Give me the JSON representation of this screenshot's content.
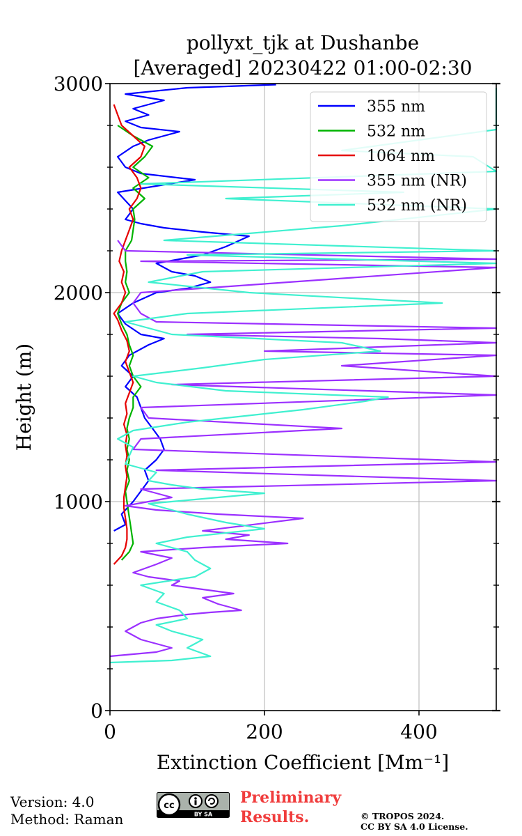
{
  "chart_data": {
    "type": "line",
    "title_line1": "pollyxt_tjk at Dushanbe",
    "title_line2": "[Averaged] 20230422 01:00-02:30",
    "xlabel": "Extinction Coefficient [Mm⁻¹]",
    "ylabel": "Height (m)",
    "xlim": [
      0,
      500
    ],
    "ylim": [
      0,
      3000
    ],
    "x_ticks": [
      0,
      200,
      400
    ],
    "y_ticks": [
      0,
      1000,
      2000,
      3000
    ],
    "x_tick_labels": [
      "0",
      "200",
      "400"
    ],
    "y_tick_labels": [
      "0",
      "1000",
      "2000",
      "3000"
    ],
    "grid": true,
    "legend_position": "top-right",
    "series": [
      {
        "name": "355 nm",
        "color": "#0000ff",
        "points": [
          [
            5,
            860
          ],
          [
            20,
            890
          ],
          [
            15,
            940
          ],
          [
            30,
            1000
          ],
          [
            40,
            1050
          ],
          [
            50,
            1100
          ],
          [
            45,
            1150
          ],
          [
            60,
            1200
          ],
          [
            70,
            1250
          ],
          [
            65,
            1300
          ],
          [
            55,
            1350
          ],
          [
            45,
            1400
          ],
          [
            40,
            1450
          ],
          [
            35,
            1500
          ],
          [
            20,
            1550
          ],
          [
            30,
            1600
          ],
          [
            15,
            1650
          ],
          [
            25,
            1700
          ],
          [
            50,
            1750
          ],
          [
            70,
            1780
          ],
          [
            40,
            1800
          ],
          [
            20,
            1850
          ],
          [
            10,
            1900
          ],
          [
            30,
            1950
          ],
          [
            60,
            2000
          ],
          [
            100,
            2020
          ],
          [
            130,
            2050
          ],
          [
            110,
            2080
          ],
          [
            80,
            2100
          ],
          [
            60,
            2140
          ],
          [
            90,
            2160
          ],
          [
            120,
            2180
          ],
          [
            150,
            2220
          ],
          [
            180,
            2270
          ],
          [
            120,
            2290
          ],
          [
            70,
            2310
          ],
          [
            40,
            2330
          ],
          [
            20,
            2350
          ],
          [
            30,
            2400
          ],
          [
            10,
            2480
          ],
          [
            60,
            2510
          ],
          [
            110,
            2540
          ],
          [
            40,
            2570
          ],
          [
            20,
            2600
          ],
          [
            10,
            2650
          ],
          [
            30,
            2700
          ],
          [
            50,
            2730
          ],
          [
            90,
            2770
          ],
          [
            40,
            2790
          ],
          [
            20,
            2820
          ],
          [
            50,
            2850
          ],
          [
            30,
            2880
          ],
          [
            70,
            2920
          ],
          [
            20,
            2950
          ],
          [
            100,
            2980
          ],
          [
            215,
            2995
          ]
        ]
      },
      {
        "name": "532 nm",
        "color": "#00b400",
        "points": [
          [
            15,
            720
          ],
          [
            25,
            760
          ],
          [
            30,
            800
          ],
          [
            28,
            850
          ],
          [
            26,
            900
          ],
          [
            24,
            950
          ],
          [
            22,
            1000
          ],
          [
            20,
            1050
          ],
          [
            25,
            1100
          ],
          [
            22,
            1150
          ],
          [
            25,
            1200
          ],
          [
            22,
            1250
          ],
          [
            25,
            1300
          ],
          [
            22,
            1350
          ],
          [
            25,
            1400
          ],
          [
            30,
            1450
          ],
          [
            30,
            1500
          ],
          [
            40,
            1550
          ],
          [
            30,
            1600
          ],
          [
            25,
            1650
          ],
          [
            30,
            1700
          ],
          [
            25,
            1750
          ],
          [
            22,
            1800
          ],
          [
            15,
            1850
          ],
          [
            10,
            1900
          ],
          [
            15,
            1950
          ],
          [
            25,
            2000
          ],
          [
            20,
            2050
          ],
          [
            22,
            2100
          ],
          [
            20,
            2150
          ],
          [
            20,
            2200
          ],
          [
            28,
            2250
          ],
          [
            30,
            2300
          ],
          [
            32,
            2350
          ],
          [
            30,
            2400
          ],
          [
            45,
            2450
          ],
          [
            30,
            2500
          ],
          [
            50,
            2550
          ],
          [
            30,
            2600
          ],
          [
            45,
            2650
          ],
          [
            55,
            2700
          ],
          [
            30,
            2750
          ],
          [
            10,
            2800
          ]
        ]
      },
      {
        "name": "1064 nm",
        "color": "#e60000",
        "points": [
          [
            5,
            700
          ],
          [
            15,
            740
          ],
          [
            20,
            780
          ],
          [
            22,
            820
          ],
          [
            22,
            870
          ],
          [
            20,
            920
          ],
          [
            18,
            970
          ],
          [
            18,
            1020
          ],
          [
            20,
            1070
          ],
          [
            22,
            1120
          ],
          [
            20,
            1170
          ],
          [
            22,
            1220
          ],
          [
            20,
            1270
          ],
          [
            22,
            1320
          ],
          [
            18,
            1370
          ],
          [
            22,
            1420
          ],
          [
            20,
            1470
          ],
          [
            25,
            1520
          ],
          [
            30,
            1570
          ],
          [
            25,
            1620
          ],
          [
            20,
            1670
          ],
          [
            25,
            1720
          ],
          [
            22,
            1770
          ],
          [
            15,
            1820
          ],
          [
            10,
            1870
          ],
          [
            5,
            1900
          ],
          [
            15,
            1950
          ],
          [
            20,
            2000
          ],
          [
            15,
            2050
          ],
          [
            18,
            2100
          ],
          [
            12,
            2150
          ],
          [
            15,
            2200
          ],
          [
            20,
            2250
          ],
          [
            25,
            2300
          ],
          [
            30,
            2350
          ],
          [
            25,
            2400
          ],
          [
            35,
            2450
          ],
          [
            40,
            2500
          ],
          [
            35,
            2550
          ],
          [
            25,
            2600
          ],
          [
            40,
            2650
          ],
          [
            45,
            2700
          ],
          [
            30,
            2750
          ],
          [
            15,
            2800
          ],
          [
            5,
            2900
          ]
        ]
      },
      {
        "name": "355 nm (NR)",
        "color": "#9b30ff",
        "points": [
          [
            0,
            260
          ],
          [
            60,
            280
          ],
          [
            80,
            300
          ],
          [
            40,
            340
          ],
          [
            20,
            380
          ],
          [
            40,
            420
          ],
          [
            60,
            440
          ],
          [
            100,
            460
          ],
          [
            130,
            470
          ],
          [
            170,
            480
          ],
          [
            140,
            510
          ],
          [
            120,
            540
          ],
          [
            160,
            560
          ],
          [
            120,
            580
          ],
          [
            80,
            600
          ],
          [
            90,
            620
          ],
          [
            50,
            640
          ],
          [
            30,
            660
          ],
          [
            60,
            700
          ],
          [
            80,
            730
          ],
          [
            40,
            760
          ],
          [
            120,
            780
          ],
          [
            230,
            800
          ],
          [
            150,
            820
          ],
          [
            180,
            840
          ],
          [
            120,
            860
          ],
          [
            250,
            920
          ],
          [
            140,
            940
          ],
          [
            60,
            960
          ],
          [
            20,
            980
          ],
          [
            80,
            1020
          ],
          [
            40,
            1060
          ],
          [
            500,
            1100
          ],
          [
            60,
            1150
          ],
          [
            500,
            1190
          ],
          [
            30,
            1250
          ],
          [
            40,
            1300
          ],
          [
            300,
            1350
          ],
          [
            50,
            1400
          ],
          [
            40,
            1450
          ],
          [
            500,
            1510
          ],
          [
            80,
            1560
          ],
          [
            500,
            1600
          ],
          [
            300,
            1650
          ],
          [
            500,
            1700
          ],
          [
            200,
            1720
          ],
          [
            500,
            1760
          ],
          [
            350,
            1780
          ],
          [
            100,
            1800
          ],
          [
            500,
            1830
          ],
          [
            60,
            1860
          ],
          [
            40,
            1900
          ],
          [
            30,
            1950
          ],
          [
            40,
            2000
          ],
          [
            500,
            2120
          ],
          [
            40,
            2150
          ],
          [
            500,
            2160
          ],
          [
            20,
            2200
          ],
          [
            10,
            2250
          ]
        ]
      },
      {
        "name": "532 nm (NR)",
        "color": "#40f0d0",
        "points": [
          [
            0,
            230
          ],
          [
            80,
            240
          ],
          [
            130,
            260
          ],
          [
            100,
            300
          ],
          [
            120,
            340
          ],
          [
            80,
            380
          ],
          [
            60,
            410
          ],
          [
            100,
            440
          ],
          [
            90,
            480
          ],
          [
            60,
            520
          ],
          [
            70,
            560
          ],
          [
            40,
            600
          ],
          [
            110,
            640
          ],
          [
            130,
            680
          ],
          [
            110,
            720
          ],
          [
            100,
            760
          ],
          [
            60,
            800
          ],
          [
            100,
            830
          ],
          [
            200,
            870
          ],
          [
            150,
            900
          ],
          [
            100,
            940
          ],
          [
            50,
            990
          ],
          [
            200,
            1040
          ],
          [
            120,
            1060
          ],
          [
            80,
            1080
          ],
          [
            50,
            1100
          ],
          [
            60,
            1140
          ],
          [
            20,
            1180
          ],
          [
            25,
            1220
          ],
          [
            30,
            1260
          ],
          [
            10,
            1300
          ],
          [
            30,
            1340
          ],
          [
            100,
            1380
          ],
          [
            200,
            1420
          ],
          [
            250,
            1440
          ],
          [
            330,
            1480
          ],
          [
            360,
            1500
          ],
          [
            150,
            1530
          ],
          [
            60,
            1570
          ],
          [
            30,
            1600
          ],
          [
            120,
            1640
          ],
          [
            200,
            1680
          ],
          [
            350,
            1720
          ],
          [
            300,
            1760
          ],
          [
            80,
            1800
          ],
          [
            20,
            1860
          ],
          [
            100,
            1900
          ],
          [
            430,
            1950
          ],
          [
            180,
            2000
          ],
          [
            50,
            2050
          ],
          [
            120,
            2100
          ],
          [
            500,
            2140
          ],
          [
            100,
            2180
          ],
          [
            500,
            2200
          ],
          [
            70,
            2250
          ],
          [
            300,
            2320
          ],
          [
            500,
            2400
          ],
          [
            150,
            2450
          ],
          [
            380,
            2480
          ],
          [
            40,
            2520
          ],
          [
            500,
            2580
          ],
          [
            470,
            2650
          ],
          [
            300,
            2680
          ],
          [
            500,
            2780
          ],
          [
            500,
            2870
          ],
          [
            500,
            2980
          ]
        ]
      }
    ]
  },
  "footer": {
    "version": "Version: 4.0",
    "method": "Method: Raman",
    "prelim1": "Preliminary",
    "prelim2": "Results.",
    "copy1": "© TROPOS 2024.",
    "copy2": "CC BY SA 4.0 License.",
    "cc_logo": "CC BY SA"
  }
}
